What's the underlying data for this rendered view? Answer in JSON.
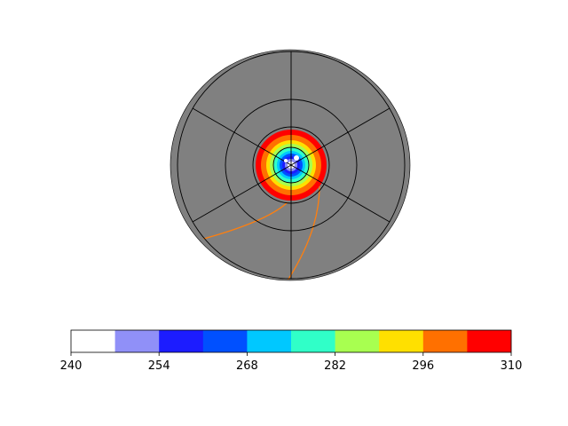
{
  "map": {
    "projection": "polar-stereographic",
    "ocean_color": "#808080",
    "graticule_color": "#000000",
    "contour_line_color": "#ff7f0e",
    "field_levels": [
      240,
      247,
      254,
      261,
      268,
      275,
      282,
      289,
      296,
      303,
      310
    ],
    "field_colors_from_center_outward": [
      "#ffffff",
      "#9090f8",
      "#1c1cff",
      "#0050ff",
      "#00c8ff",
      "#30ffc8",
      "#a8ff50",
      "#ffe000",
      "#ff7000",
      "#ff0000"
    ]
  },
  "colorbar": {
    "colors": [
      "#ffffff",
      "#9090f8",
      "#1c1cff",
      "#0050ff",
      "#00c8ff",
      "#30ffc8",
      "#a8ff50",
      "#ffe000",
      "#ff7000",
      "#ff0000"
    ],
    "ticks": [
      "240",
      "254",
      "268",
      "282",
      "296",
      "310"
    ]
  }
}
